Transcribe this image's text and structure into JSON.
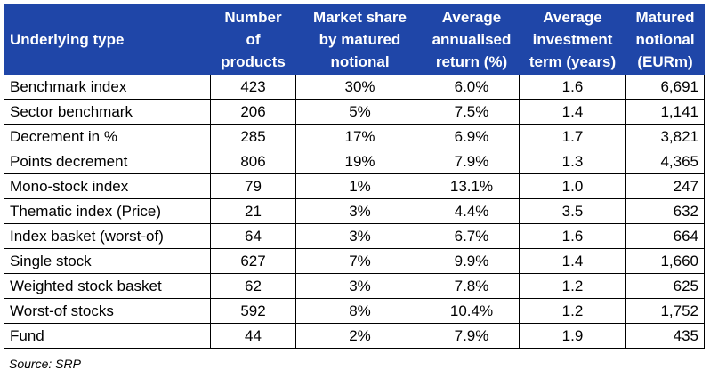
{
  "table": {
    "headers": [
      {
        "lines": [
          "Underlying type"
        ]
      },
      {
        "lines": [
          "Number",
          "of",
          "products"
        ]
      },
      {
        "lines": [
          "Market share",
          "by matured",
          "notional"
        ]
      },
      {
        "lines": [
          "Average",
          "annualised",
          "return (%)"
        ]
      },
      {
        "lines": [
          "Average",
          "investment",
          "term (years)"
        ]
      },
      {
        "lines": [
          "Matured",
          "notional",
          "(EURm)"
        ]
      }
    ],
    "rows": [
      [
        "Benchmark index",
        "423",
        "30%",
        "6.0%",
        "1.6",
        "6,691"
      ],
      [
        "Sector benchmark",
        "206",
        "5%",
        "7.5%",
        "1.4",
        "1,141"
      ],
      [
        "Decrement in %",
        "285",
        "17%",
        "6.9%",
        "1.7",
        "3,821"
      ],
      [
        "Points decrement",
        "806",
        "19%",
        "7.9%",
        "1.3",
        "4,365"
      ],
      [
        "Mono-stock index",
        "79",
        "1%",
        "13.1%",
        "1.0",
        "247"
      ],
      [
        "Thematic index (Price)",
        "21",
        "3%",
        "4.4%",
        "3.5",
        "632"
      ],
      [
        "Index basket (worst-of)",
        "64",
        "3%",
        "6.7%",
        "1.6",
        "664"
      ],
      [
        "Single stock",
        "627",
        "7%",
        "9.9%",
        "1.4",
        "1,660"
      ],
      [
        "Weighted stock basket",
        "62",
        "3%",
        "7.8%",
        "1.2",
        "625"
      ],
      [
        "Worst-of stocks",
        "592",
        "8%",
        "10.4%",
        "1.2",
        "1,752"
      ],
      [
        "Fund",
        "44",
        "2%",
        "7.9%",
        "1.9",
        "435"
      ]
    ]
  },
  "source": "Source: SRP",
  "colors": {
    "header_bg": "#1f46a8",
    "header_text": "#ffffff"
  }
}
